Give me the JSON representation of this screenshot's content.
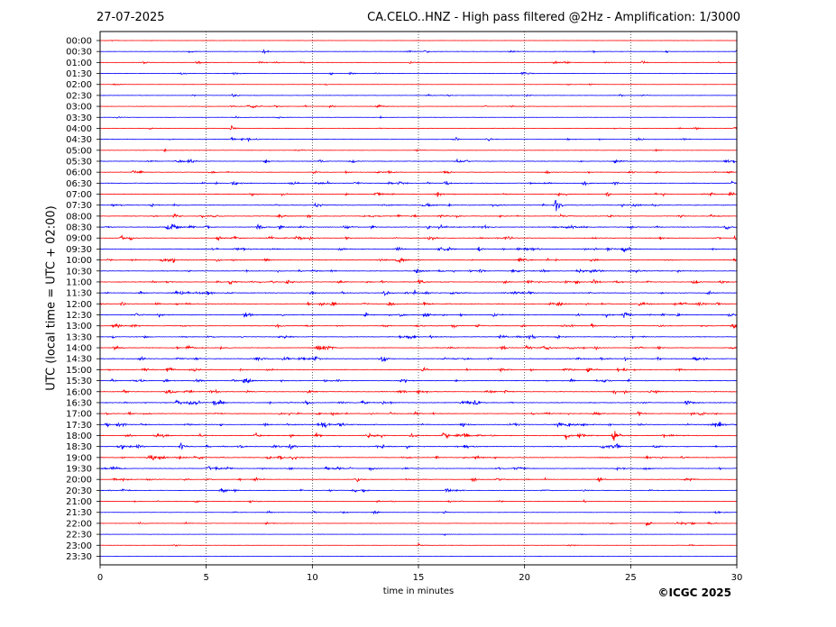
{
  "header": {
    "date": "27-07-2025",
    "title": "CA.CELO..HNZ - High pass filtered @2Hz - Amplification: 1/3000"
  },
  "footer": {
    "xlabel": "time in minutes",
    "copyright": "©ICGC 2025"
  },
  "colors": {
    "even_hour_trace": "#ff0000",
    "half_hour_trace": "#0000ff",
    "axes": "#000000"
  },
  "chart_data": {
    "type": "line",
    "title": "CA.CELO..HNZ - High pass filtered @2Hz - Amplification: 1/3000",
    "xlabel": "time in minutes",
    "ylabel": "UTC (local time = UTC + 02:00)",
    "xlim": [
      0,
      30
    ],
    "x_ticks": [
      0,
      5,
      10,
      15,
      20,
      25,
      30
    ],
    "grid": "vertical dotted lines at 5-minute ticks",
    "rows": [
      "00:00",
      "00:30",
      "01:00",
      "01:30",
      "02:00",
      "02:30",
      "03:00",
      "03:30",
      "04:00",
      "04:30",
      "05:00",
      "05:30",
      "06:00",
      "06:30",
      "07:00",
      "07:30",
      "08:00",
      "08:30",
      "09:00",
      "09:30",
      "10:00",
      "10:30",
      "11:00",
      "11:30",
      "12:00",
      "12:30",
      "13:00",
      "13:30",
      "14:00",
      "14:30",
      "15:00",
      "15:30",
      "16:00",
      "16:30",
      "17:00",
      "17:30",
      "18:00",
      "18:30",
      "19:00",
      "19:30",
      "20:00",
      "20:30",
      "21:00",
      "21:30",
      "22:00",
      "22:30",
      "23:00",
      "23:30"
    ],
    "traces_recorded": 48,
    "activity_level": [
      0.05,
      0.3,
      0.35,
      0.3,
      0.15,
      0.3,
      0.35,
      0.15,
      0.3,
      0.4,
      0.15,
      0.55,
      0.55,
      0.65,
      0.6,
      0.75,
      0.7,
      0.8,
      0.75,
      0.8,
      0.8,
      0.75,
      0.85,
      0.85,
      0.85,
      0.8,
      0.7,
      0.75,
      0.75,
      0.8,
      0.7,
      0.7,
      0.75,
      0.85,
      0.75,
      0.85,
      0.9,
      0.85,
      0.8,
      0.7,
      0.6,
      0.55,
      0.35,
      0.3,
      0.3,
      0.1,
      0.1,
      0.0
    ],
    "events": [
      {
        "row": "00:30",
        "minute": 7.7,
        "amp": 1.0
      },
      {
        "row": "01:00",
        "minute": 9.5,
        "amp": 0.6
      },
      {
        "row": "01:30",
        "minute": 11.8,
        "amp": 0.7
      },
      {
        "row": "02:30",
        "minute": 6.3,
        "amp": 0.8
      },
      {
        "row": "03:00",
        "minute": 7.2,
        "amp": 0.7
      },
      {
        "row": "04:00",
        "minute": 6.2,
        "amp": 0.8
      },
      {
        "row": "04:30",
        "minute": 6.2,
        "amp": 1.0
      },
      {
        "row": "05:30",
        "minute": 7.8,
        "amp": 1.0
      },
      {
        "row": "06:30",
        "minute": 22.8,
        "amp": 0.9
      },
      {
        "row": "07:00",
        "minute": 29.7,
        "amp": 1.0
      },
      {
        "row": "08:30",
        "minute": 29.5,
        "amp": 0.9
      },
      {
        "row": "11:00",
        "minute": 20.2,
        "amp": 0.9
      },
      {
        "row": "12:30",
        "minute": 2.8,
        "amp": 0.9
      },
      {
        "row": "14:30",
        "minute": 13.3,
        "amp": 0.8
      },
      {
        "row": "15:00",
        "minute": 15.2,
        "amp": 0.9
      },
      {
        "row": "15:00",
        "minute": 23.0,
        "amp": 1.0
      },
      {
        "row": "16:30",
        "minute": 5.4,
        "amp": 1.2
      },
      {
        "row": "16:30",
        "minute": 17.7,
        "amp": 1.3
      },
      {
        "row": "17:00",
        "minute": 25.4,
        "amp": 1.0
      },
      {
        "row": "17:30",
        "minute": 10.3,
        "amp": 1.3
      },
      {
        "row": "18:00",
        "minute": 24.2,
        "amp": 1.4
      },
      {
        "row": "18:30",
        "minute": 3.8,
        "amp": 1.0
      },
      {
        "row": "20:30",
        "minute": 5.8,
        "amp": 0.9
      },
      {
        "row": "22:00",
        "minute": 25.8,
        "amp": 0.8
      },
      {
        "row": "23:00",
        "minute": 15.0,
        "amp": 0.6
      }
    ]
  }
}
